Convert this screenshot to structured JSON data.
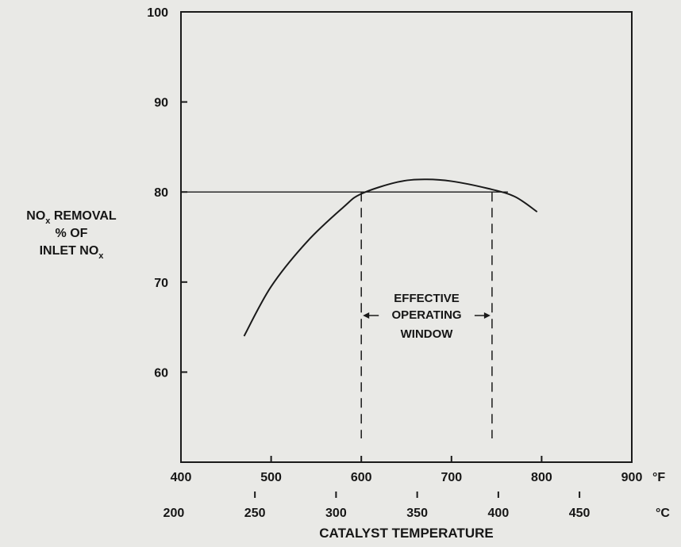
{
  "chart_data": {
    "type": "line",
    "title": "",
    "ylabel_lines": [
      {
        "main": "NO",
        "sub": "x",
        "rest": " REMOVAL"
      },
      {
        "main": "% OF",
        "sub": "",
        "rest": ""
      },
      {
        "main": "INLET NO",
        "sub": "x",
        "rest": ""
      }
    ],
    "xlabel": "CATALYST TEMPERATURE",
    "x_unit_primary": "°F",
    "x_unit_secondary": "°C",
    "xlim": [
      400,
      900
    ],
    "ylim": [
      50,
      100
    ],
    "y_ticks": [
      60,
      70,
      80,
      90,
      100
    ],
    "x_ticks_f": [
      400,
      500,
      600,
      700,
      800,
      900
    ],
    "x_ticks_c": [
      200,
      250,
      300,
      350,
      400,
      450
    ],
    "grid": false,
    "series": [
      {
        "x": [
          470,
          500,
          540,
          580,
          600,
          640,
          670,
          700,
          740,
          770,
          795
        ],
        "y": [
          64,
          69.5,
          74.5,
          78.3,
          79.8,
          81.1,
          81.4,
          81.2,
          80.4,
          79.5,
          77.8
        ]
      }
    ],
    "threshold_y": 80,
    "window": {
      "x_start": 600,
      "x_end": 745,
      "label_lines": [
        "EFFECTIVE",
        "OPERATING",
        "WINDOW"
      ]
    }
  }
}
